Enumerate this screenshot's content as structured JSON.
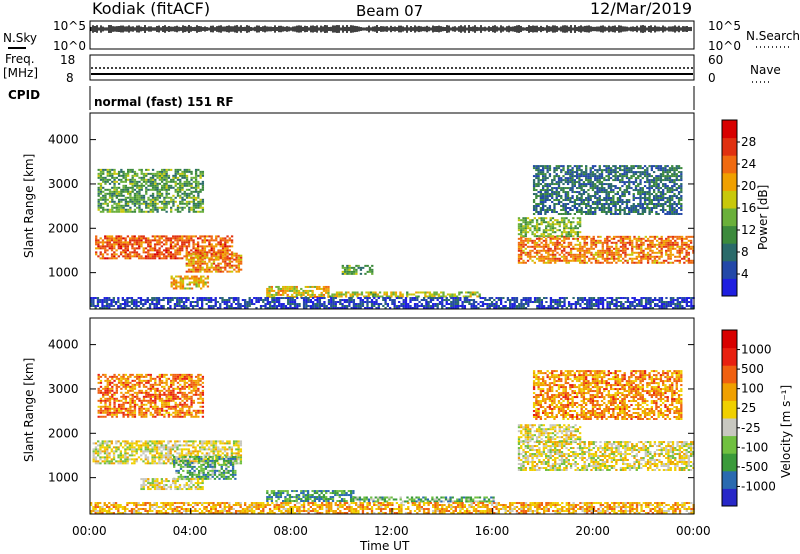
{
  "header": {
    "station": "Kodiak (fitACF)",
    "beam": "Beam 07",
    "date": "12/Mar/2019"
  },
  "top_panels": {
    "nsky_label": "N.Sky",
    "nsky_ticks": [
      "10^5",
      "10^0"
    ],
    "nsearch_label": "N.Search",
    "nsearch_ticks": [
      "10^5",
      "10^0"
    ],
    "freq_label_1": "Freq.",
    "freq_label_2": "[MHz]",
    "freq_ticks": [
      "18",
      "8"
    ],
    "nave_label": "Nave",
    "nave_ticks": [
      "60",
      "0"
    ],
    "cpid_label": "CPID",
    "cpid_text": "normal (fast) 151 RF"
  },
  "chart_data": [
    {
      "type": "heatmap",
      "name": "power",
      "ylabel": "Slant Range [km]",
      "yticks": [
        "4000",
        "3000",
        "2000",
        "1000"
      ],
      "ylim": [
        180,
        4600
      ],
      "xlim": [
        0,
        24
      ],
      "colorbar_label": "Power [dB]",
      "colorbar_ticks": [
        "28",
        "24",
        "20",
        "16",
        "12",
        "8",
        "4"
      ],
      "colorbar_colors": [
        "#1f1fe0",
        "#2348a8",
        "#2a6a6a",
        "#3c8a3c",
        "#6ab03a",
        "#c8c80a",
        "#f0a000",
        "#f06a10",
        "#e03010",
        "#d80000"
      ],
      "regions": [
        {
          "t0": 0.2,
          "t1": 5.6,
          "r0": 1300,
          "r1": 1800,
          "level": 0.78
        },
        {
          "t0": 3.8,
          "t1": 6.0,
          "r0": 1000,
          "r1": 1450,
          "level": 0.7
        },
        {
          "t0": 3.2,
          "t1": 4.7,
          "r0": 620,
          "r1": 920,
          "level": 0.62
        },
        {
          "t0": 0.3,
          "t1": 4.5,
          "r0": 2350,
          "r1": 3300,
          "level": 0.38
        },
        {
          "t0": 7.0,
          "t1": 9.5,
          "r0": 430,
          "r1": 690,
          "level": 0.58
        },
        {
          "t0": 9.5,
          "t1": 15.5,
          "r0": 440,
          "r1": 560,
          "level": 0.52
        },
        {
          "t0": 10.0,
          "t1": 11.2,
          "r0": 950,
          "r1": 1150,
          "level": 0.4
        },
        {
          "t0": 17.0,
          "t1": 24.0,
          "r0": 1200,
          "r1": 1800,
          "level": 0.72
        },
        {
          "t0": 17.0,
          "t1": 19.5,
          "r0": 1800,
          "r1": 2250,
          "level": 0.45
        },
        {
          "t0": 17.6,
          "t1": 23.5,
          "r0": 2300,
          "r1": 3400,
          "level": 0.25
        },
        {
          "t0": 0.0,
          "t1": 24.0,
          "r0": 180,
          "r1": 420,
          "level": 0.12
        }
      ]
    },
    {
      "type": "heatmap",
      "name": "velocity",
      "ylabel": "Slant Range [km]",
      "yticks": [
        "4000",
        "3000",
        "2000",
        "1000"
      ],
      "ylim": [
        180,
        4600
      ],
      "xlim": [
        0,
        24
      ],
      "xticks": [
        "00:00",
        "04:00",
        "08:00",
        "12:00",
        "16:00",
        "20:00",
        "00:00"
      ],
      "xlabel": "Time UT",
      "colorbar_label": "Velocity [m s⁻¹]",
      "colorbar_ticks": [
        "1000",
        "500",
        "100",
        "25",
        "-25",
        "-100",
        "-500",
        "-1000"
      ],
      "colorbar_colors": [
        "#2828c8",
        "#2a6ab0",
        "#3a9a3a",
        "#70c040",
        "#c8c8c0",
        "#f0d000",
        "#f0a000",
        "#f06010",
        "#e82010",
        "#d80000"
      ],
      "regions": [
        {
          "t0": 0.1,
          "t1": 6.0,
          "r0": 1300,
          "r1": 1800,
          "level": 0.5
        },
        {
          "t0": 3.3,
          "t1": 5.8,
          "r0": 950,
          "r1": 1450,
          "level": 0.28
        },
        {
          "t0": 2.0,
          "t1": 4.5,
          "r0": 720,
          "r1": 950,
          "level": 0.5
        },
        {
          "t0": 0.3,
          "t1": 4.5,
          "r0": 2350,
          "r1": 3300,
          "level": 0.72
        },
        {
          "t0": 7.0,
          "t1": 10.5,
          "r0": 450,
          "r1": 720,
          "level": 0.25
        },
        {
          "t0": 10.5,
          "t1": 16.0,
          "r0": 440,
          "r1": 560,
          "level": 0.3
        },
        {
          "t0": 17.0,
          "t1": 24.0,
          "r0": 1150,
          "r1": 1800,
          "level": 0.5
        },
        {
          "t0": 17.0,
          "t1": 19.5,
          "r0": 1800,
          "r1": 2200,
          "level": 0.5
        },
        {
          "t0": 17.6,
          "t1": 23.5,
          "r0": 2300,
          "r1": 3400,
          "level": 0.68
        },
        {
          "t0": 0.0,
          "t1": 24.0,
          "r0": 180,
          "r1": 420,
          "level": 0.62
        }
      ]
    }
  ]
}
